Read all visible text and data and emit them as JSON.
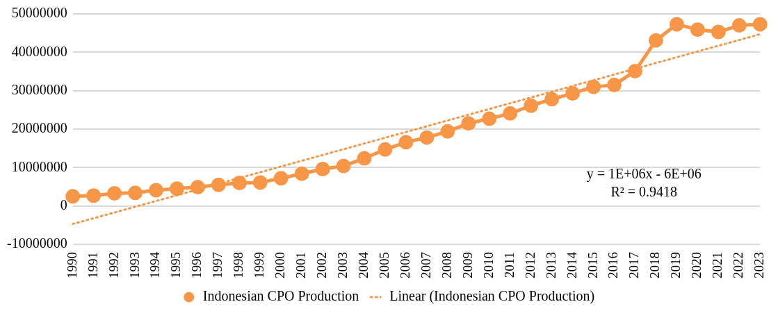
{
  "chart_data": {
    "type": "line",
    "categories": [
      "1990",
      "1991",
      "1992",
      "1993",
      "1994",
      "1995",
      "1996",
      "1997",
      "1998",
      "1999",
      "2000",
      "2001",
      "2002",
      "2003",
      "2004",
      "2005",
      "2006",
      "2007",
      "2008",
      "2009",
      "2010",
      "2011",
      "2012",
      "2013",
      "2014",
      "2015",
      "2016",
      "2017",
      "2018",
      "2019",
      "2020",
      "2021",
      "2022",
      "2023"
    ],
    "series": [
      {
        "name": "Indonesian CPO Production",
        "color": "#f79646",
        "marker": "circle",
        "line_style": "solid",
        "values": [
          2500000,
          2700000,
          3300000,
          3400000,
          4100000,
          4500000,
          4900000,
          5500000,
          6000000,
          6100000,
          7200000,
          8400000,
          9600000,
          10400000,
          12400000,
          14700000,
          16600000,
          17800000,
          19400000,
          21500000,
          22700000,
          24100000,
          26100000,
          27800000,
          29300000,
          31000000,
          31500000,
          35100000,
          43100000,
          47300000,
          45900000,
          45300000,
          47000000,
          47300000
        ]
      },
      {
        "name": "Linear (Indonesian CPO Production)",
        "type": "line",
        "color": "#f79646",
        "marker": "none",
        "line_style": "dotted",
        "values": [
          -4700000,
          null,
          null,
          null,
          null,
          null,
          null,
          null,
          null,
          null,
          null,
          null,
          null,
          null,
          null,
          null,
          null,
          null,
          null,
          null,
          null,
          null,
          null,
          null,
          null,
          null,
          null,
          null,
          null,
          null,
          null,
          null,
          null,
          44700000
        ]
      }
    ],
    "ylim": [
      -10000000,
      50000000
    ],
    "yticks": [
      -10000000,
      0,
      10000000,
      20000000,
      30000000,
      40000000,
      50000000
    ],
    "grid": "y",
    "legend": "bottom",
    "annotations": [
      "y = 1E+06x - 6E+06",
      "R² = 0.9418"
    ]
  }
}
